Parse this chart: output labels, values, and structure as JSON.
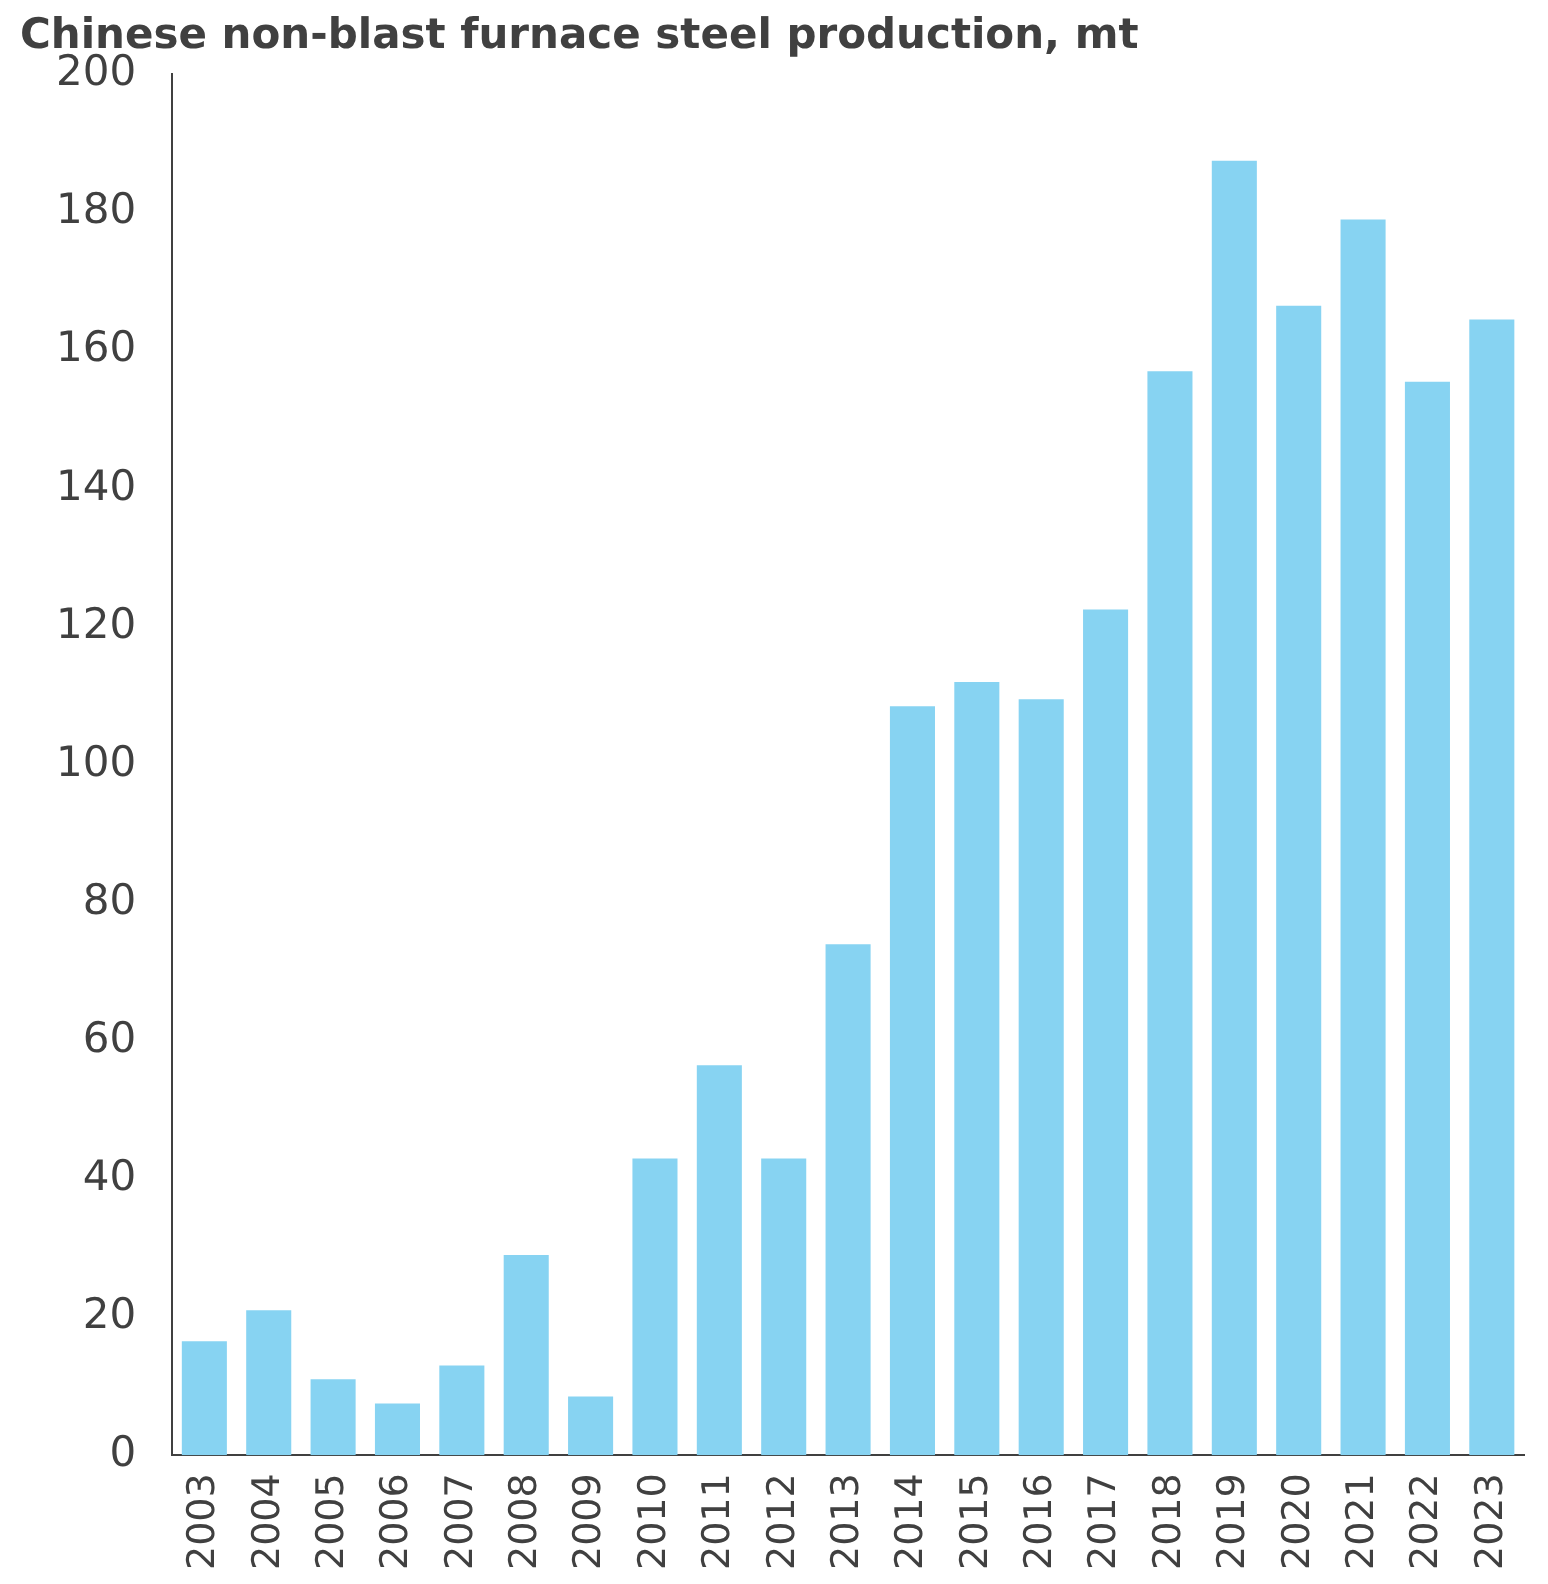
{
  "chart_data": {
    "type": "bar",
    "title": "Chinese non-blast furnace steel production, mt",
    "categories": [
      "2003",
      "2004",
      "2005",
      "2006",
      "2007",
      "2008",
      "2009",
      "2010",
      "2011",
      "2012",
      "2013",
      "2014",
      "2015",
      "2016",
      "2017",
      "2018",
      "2019",
      "2020",
      "2021",
      "2022",
      "2023"
    ],
    "values": [
      16.5,
      21,
      11,
      7.5,
      13,
      29,
      8.5,
      43,
      56.5,
      43,
      74,
      108.5,
      112,
      109.5,
      122.5,
      157,
      187.5,
      166.5,
      179,
      155.5,
      164.5
    ],
    "color": "#87d3f2",
    "ylim": [
      0,
      200
    ],
    "yticks": [
      0,
      20,
      40,
      60,
      80,
      100,
      120,
      140,
      160,
      180,
      200
    ],
    "grid": false
  }
}
